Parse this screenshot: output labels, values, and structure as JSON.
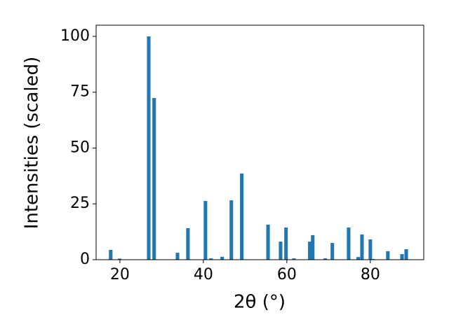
{
  "chart_data": {
    "type": "bar",
    "xlabel": "2θ (°)",
    "ylabel": "Intensities (scaled)",
    "x": [
      17.8,
      19.9,
      26.9,
      28.2,
      33.8,
      36.3,
      40.5,
      41.8,
      44.5,
      46.7,
      49.2,
      55.5,
      58.5,
      59.8,
      61.7,
      65.5,
      66.2,
      69.2,
      70.9,
      74.8,
      77.1,
      78.0,
      80.0,
      80.7,
      84.2,
      87.6,
      88.6
    ],
    "values": [
      4.4,
      0.5,
      100,
      72.4,
      3.1,
      14.1,
      26.3,
      0.6,
      1.3,
      26.6,
      38.6,
      15.7,
      8.1,
      14.4,
      0.6,
      8.1,
      11,
      0.6,
      7.5,
      14.4,
      1.2,
      11.3,
      9.1,
      0.3,
      3.8,
      2.5,
      4.7
    ],
    "color": "#1f77b4",
    "xlim": [
      14.3,
      92.8
    ],
    "ylim": [
      0,
      105
    ],
    "xticks": [
      20,
      40,
      60,
      80
    ],
    "yticks": [
      0,
      25,
      50,
      75,
      100
    ]
  }
}
